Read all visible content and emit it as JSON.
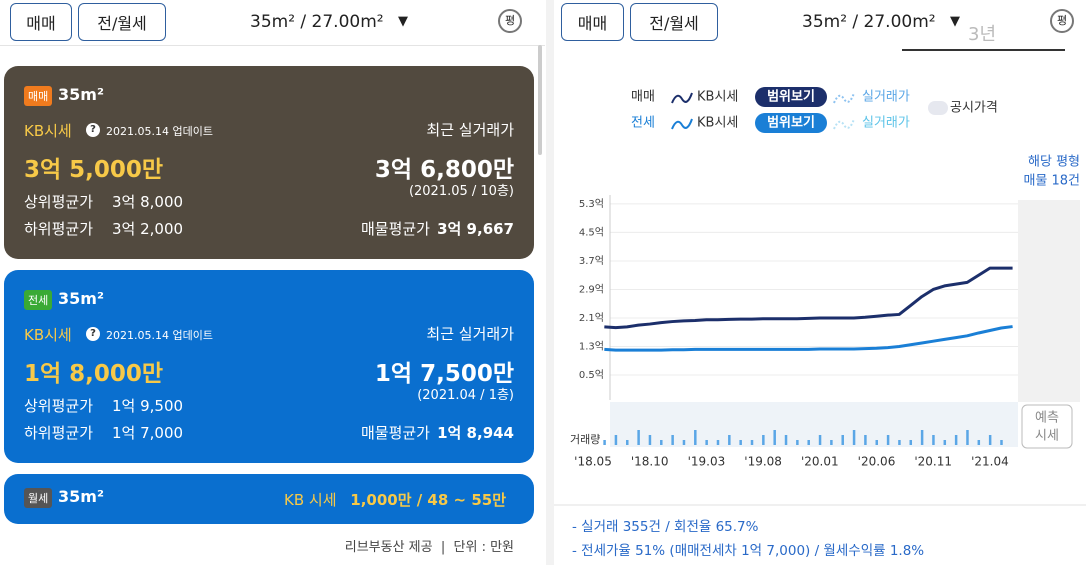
{
  "left": {
    "tabs": [
      "매매",
      "전/월세"
    ],
    "area": "35m² / 27.00m²",
    "unit_icon": "평",
    "cards": [
      {
        "badge": "매매",
        "size": "35m²",
        "kb_label": "KB시세",
        "help": "?",
        "updated": "2021.05.14 업데이트",
        "recent_label": "최근 실거래가",
        "kb_price": "3억 5,000만",
        "recent_price": "3억 6,800만",
        "recent_detail": "(2021.05 / 10층)",
        "upper_label": "상위평균가",
        "upper": "3억 8,000",
        "lower_label": "하위평균가",
        "lower": "3억 2,000",
        "listing_label": "매물평균가",
        "listing": "3억 9,667"
      },
      {
        "badge": "전세",
        "size": "35m²",
        "kb_label": "KB시세",
        "help": "?",
        "updated": "2021.05.14 업데이트",
        "recent_label": "최근 실거래가",
        "kb_price": "1억 8,000만",
        "recent_price": "1억 7,500만",
        "recent_detail": "(2021.04 / 1층)",
        "upper_label": "상위평균가",
        "upper": "1억 9,500",
        "lower_label": "하위평균가",
        "lower": "1억 7,000",
        "listing_label": "매물평균가",
        "listing": "1억 8,944"
      }
    ],
    "monthly": {
      "badge": "월세",
      "size": "35m²",
      "kb_label": "KB 시세",
      "price": "1,000만 / 48 ~ 55만"
    },
    "footer": "리브부동산 제공  |  단위 : 만원"
  },
  "right": {
    "tabs": [
      "매매",
      "전/월세"
    ],
    "area": "35m² / 27.00m²",
    "unit_icon": "평",
    "period": "3년",
    "legend": {
      "sale": "매매",
      "jeonse": "전세",
      "kb": "KB시세",
      "range": "범위보기",
      "trade": "실거래가",
      "official": "공시가격"
    },
    "listing_note": [
      "해당 평형",
      "매물 18건"
    ],
    "forecast": [
      "예측",
      "시세"
    ],
    "volume_label": "거래량",
    "chart_data": {
      "type": "line",
      "x": [
        "'18.05",
        null,
        null,
        null,
        null,
        "'18.10",
        null,
        null,
        null,
        null,
        "'19.03",
        null,
        null,
        null,
        null,
        "'19.08",
        null,
        null,
        null,
        null,
        "'20.01",
        null,
        null,
        null,
        null,
        "'20.06",
        null,
        null,
        null,
        null,
        "'20.11",
        null,
        null,
        null,
        null,
        "'21.04",
        null,
        null
      ],
      "series": [
        {
          "name": "매매",
          "color": "#1c2f6b",
          "values": [
            null,
            1.85,
            1.83,
            1.85,
            1.9,
            1.93,
            1.97,
            2.0,
            2.02,
            2.03,
            2.05,
            2.05,
            2.06,
            2.07,
            2.07,
            2.08,
            2.08,
            2.08,
            2.08,
            2.09,
            2.1,
            2.1,
            2.1,
            2.1,
            2.12,
            2.15,
            2.18,
            2.2,
            2.45,
            2.7,
            2.9,
            3.0,
            3.05,
            3.1,
            3.3,
            3.5,
            3.5,
            3.5
          ]
        },
        {
          "name": "전세",
          "color": "#1a7fd6",
          "values": [
            null,
            1.22,
            1.2,
            1.2,
            1.2,
            1.2,
            1.2,
            1.21,
            1.21,
            1.22,
            1.22,
            1.22,
            1.22,
            1.22,
            1.22,
            1.22,
            1.22,
            1.22,
            1.22,
            1.22,
            1.23,
            1.23,
            1.23,
            1.23,
            1.24,
            1.25,
            1.27,
            1.3,
            1.35,
            1.4,
            1.45,
            1.5,
            1.55,
            1.6,
            1.68,
            1.75,
            1.82,
            1.86
          ]
        }
      ],
      "volume": {
        "color": "#5aa6e6",
        "values": [
          0,
          1,
          2,
          1,
          3,
          2,
          1,
          2,
          1,
          3,
          1,
          1,
          2,
          1,
          1,
          2,
          3,
          2,
          1,
          1,
          2,
          1,
          2,
          3,
          2,
          1,
          2,
          1,
          1,
          3,
          2,
          1,
          2,
          3,
          1,
          2,
          1,
          0
        ]
      },
      "ylim": [
        -0.2,
        5.55
      ],
      "yticks": [
        {
          "value": 5.3,
          "label": "5.3억"
        },
        {
          "value": 4.5,
          "label": "4.5억"
        },
        {
          "value": 3.7,
          "label": "3.7억"
        },
        {
          "value": 2.9,
          "label": "2.9억"
        },
        {
          "value": 2.1,
          "label": "2.1억"
        },
        {
          "value": 1.3,
          "label": "1.3억"
        },
        {
          "value": 0.5,
          "label": "0.5억"
        }
      ],
      "grid": true
    },
    "stats": [
      "- 실거래 355건 / 회전율 65.7%",
      "- 전세가율 51% (매매전세차 1억 7,000) / 월세수익률 1.8%"
    ]
  }
}
